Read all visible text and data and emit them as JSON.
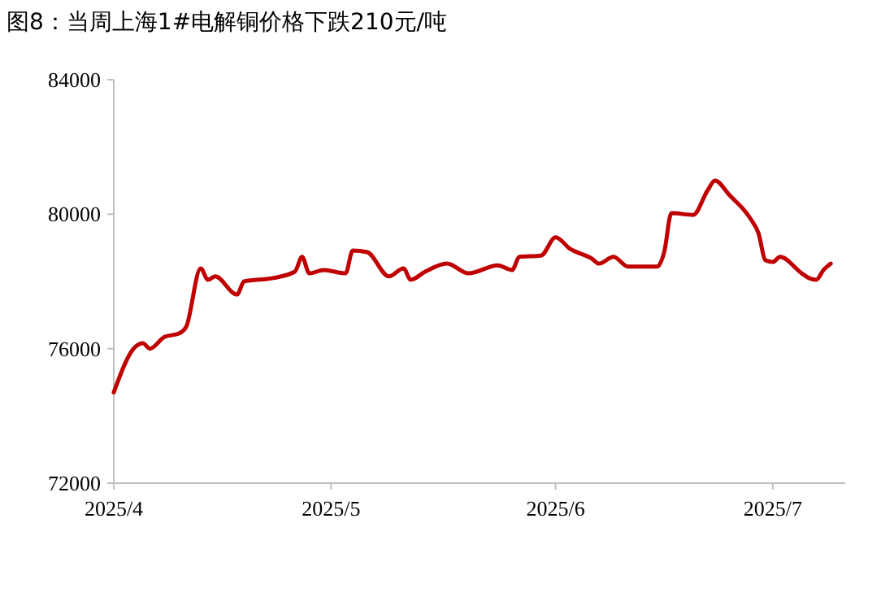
{
  "chart_data": {
    "type": "line",
    "title": "图8：当周上海1#电解铜价格下跌210元/吨",
    "x": [
      "2025-04-01",
      "2025-04-04",
      "2025-04-05",
      "2025-04-06",
      "2025-04-08",
      "2025-04-10",
      "2025-04-11",
      "2025-04-13",
      "2025-04-14",
      "2025-04-15",
      "2025-04-18",
      "2025-04-19",
      "2025-04-23",
      "2025-04-26",
      "2025-04-27",
      "2025-04-28",
      "2025-04-30",
      "2025-05-03",
      "2025-05-04",
      "2025-05-06",
      "2025-05-09",
      "2025-05-11",
      "2025-05-12",
      "2025-05-14",
      "2025-05-17",
      "2025-05-20",
      "2025-05-24",
      "2025-05-26",
      "2025-05-27",
      "2025-05-30",
      "2025-06-01",
      "2025-06-03",
      "2025-06-06",
      "2025-06-07",
      "2025-06-09",
      "2025-06-11",
      "2025-06-15",
      "2025-06-16",
      "2025-06-17",
      "2025-06-20",
      "2025-06-22",
      "2025-06-23",
      "2025-06-25",
      "2025-06-28",
      "2025-06-29",
      "2025-06-30",
      "2025-07-01",
      "2025-07-02",
      "2025-07-05",
      "2025-07-06",
      "2025-07-07",
      "2025-07-08",
      "2025-07-09"
    ],
    "series": [
      {
        "color": "#c00000",
        "values": [
          74700,
          76060,
          76160,
          76000,
          76350,
          76450,
          76650,
          78390,
          78050,
          78150,
          77610,
          78000,
          78100,
          78290,
          78730,
          78240,
          78340,
          78240,
          78920,
          78870,
          78150,
          78390,
          78050,
          78290,
          78530,
          78240,
          78480,
          78340,
          78730,
          78770,
          79310,
          78970,
          78680,
          78530,
          78730,
          78440,
          78440,
          78870,
          80030,
          79980,
          80710,
          81000,
          80570,
          79840,
          79450,
          78630,
          78580,
          78730,
          78240,
          78100,
          78050,
          78340,
          78530
        ]
      }
    ],
    "xlim": [
      "2025-04-01",
      "2025-07-11"
    ],
    "xticks": [
      {
        "value": "2025-04-01",
        "label": "2025/4"
      },
      {
        "value": "2025-05-01",
        "label": "2025/5"
      },
      {
        "value": "2025-06-01",
        "label": "2025/6"
      },
      {
        "value": "2025-07-01",
        "label": "2025/7"
      }
    ],
    "ylim": [
      72000,
      84000
    ],
    "yticks": [
      72000,
      76000,
      80000,
      84000
    ],
    "grid": false
  }
}
